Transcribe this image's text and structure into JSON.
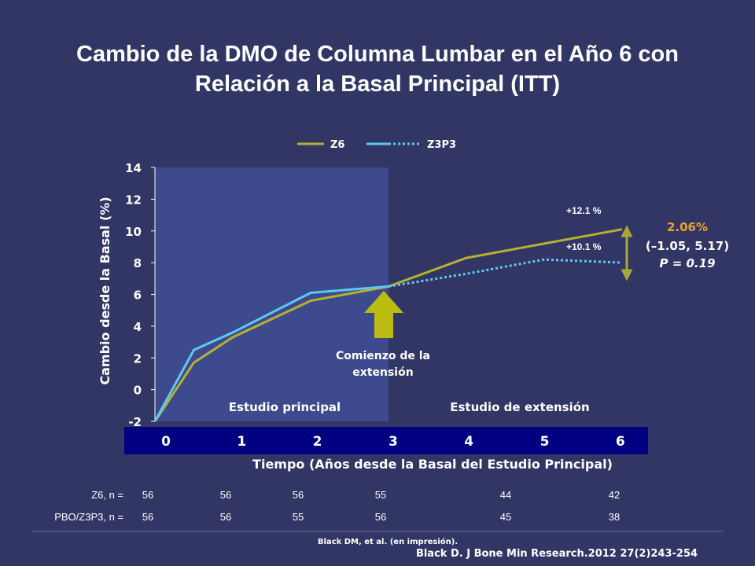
{
  "chart_data": {
    "type": "line",
    "title_lines": [
      "Cambio de la DMO de Columna Lumbar en el Año 6 con",
      "Relación a la Basal Principal (ITT)"
    ],
    "xlabel": "Tiempo (Años desde la Basal del Estudio Principal)",
    "ylabel": "Cambio desde la Basal (%)",
    "x_ticks": [
      "0",
      "1",
      "2",
      "3",
      "4",
      "5",
      "6"
    ],
    "y_ticks": [
      "14",
      "12",
      "10",
      "8",
      "6",
      "4",
      "2",
      "0",
      "-2"
    ],
    "xlim": [
      0,
      6
    ],
    "ylim": [
      -2,
      14
    ],
    "legend": [
      "Z6",
      "Z3P3"
    ],
    "legend_position": "top",
    "series": [
      {
        "name": "Z6",
        "color": "#b5b12e",
        "style": "solid",
        "points": [
          [
            0,
            -2
          ],
          [
            0.5,
            1.7
          ],
          [
            1,
            3.3
          ],
          [
            2,
            5.6
          ],
          [
            3,
            6.5
          ],
          [
            4,
            8.3
          ],
          [
            5,
            9.2
          ],
          [
            6,
            10.1
          ]
        ]
      },
      {
        "name": "Z3P3",
        "color": "#5ec8f2",
        "solid_until_x": 3,
        "points": [
          [
            0,
            -2
          ],
          [
            0.5,
            2.5
          ],
          [
            1,
            3.6
          ],
          [
            2,
            6.1
          ],
          [
            3,
            6.5
          ],
          [
            4,
            7.3
          ],
          [
            5,
            8.2
          ],
          [
            6,
            8.0
          ]
        ]
      }
    ],
    "periods": [
      {
        "label": "Estudio principal",
        "x_range": [
          0,
          3
        ],
        "shaded": true,
        "color": "#3e4a8e"
      },
      {
        "label": "Estudio de extensión",
        "x_range": [
          3,
          6
        ],
        "shaded": false
      }
    ],
    "annotations": {
      "extension_start": [
        "Comienzo de la",
        "extensión"
      ],
      "extension_x": 3,
      "z6_change": "+12.1 %",
      "z3p3_change": "+10.1 %",
      "difference": "2.06%",
      "ci": "(–1.05, 5.17)",
      "p_value": "P = 0.19"
    },
    "colors": {
      "background": "#323665",
      "x_band": "#000080",
      "arrow": "#bcbc10",
      "double_arrow": "#a8a838",
      "difference_text": "#f0a030"
    }
  },
  "n_table": {
    "rows": [
      {
        "label": "Z6, n =",
        "values": [
          "56",
          "56",
          "56",
          "55",
          "44",
          "42"
        ]
      },
      {
        "label": "PBO/Z3P3, n =",
        "values": [
          "56",
          "56",
          "55",
          "56",
          "45",
          "38"
        ]
      }
    ]
  },
  "references": {
    "small": "Black DM, et al. (en impresión).",
    "main": "Black D. J Bone Min Research.2012 27(2)243-254"
  }
}
